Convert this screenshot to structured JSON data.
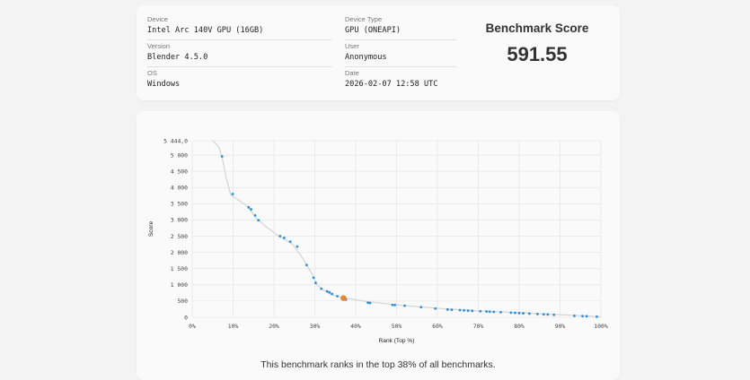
{
  "info": {
    "device_label": "Device",
    "device_value": "Intel Arc 140V GPU (16GB)",
    "version_label": "Version",
    "version_value": "Blender 4.5.0",
    "os_label": "OS",
    "os_value": "Windows",
    "device_type_label": "Device Type",
    "device_type_value": "GPU (ONEAPI)",
    "user_label": "User",
    "user_value": "Anonymous",
    "date_label": "Date",
    "date_value": "2026-02-07 12:58 UTC"
  },
  "score": {
    "title": "Benchmark Score",
    "value": "591.55"
  },
  "rank_text": "This benchmark ranks in the top 38% of all benchmarks.",
  "colors": {
    "points": "#2f8fd6",
    "highlight": "#e8852c",
    "curve": "#d4d4d4",
    "grid": "#e7e7e7"
  },
  "chart_data": {
    "type": "scatter",
    "xlabel": "Rank (Top %)",
    "ylabel": "Score",
    "xlim": [
      0,
      100
    ],
    "ylim": [
      0,
      5444
    ],
    "x_ticks": [
      "0%",
      "10%",
      "20%",
      "30%",
      "40%",
      "50%",
      "60%",
      "70%",
      "80%",
      "90%",
      "100%"
    ],
    "x_tick_values": [
      0,
      10,
      20,
      30,
      40,
      50,
      60,
      70,
      80,
      90,
      100
    ],
    "y_ticks": [
      "0",
      "500",
      "1 000",
      "1 500",
      "2 000",
      "2 500",
      "3 000",
      "3 500",
      "4 000",
      "4 500",
      "5 000",
      "5 444,0"
    ],
    "y_tick_values": [
      0,
      500,
      1000,
      1500,
      2000,
      2500,
      3000,
      3500,
      4000,
      4500,
      5000,
      5444
    ],
    "grid": true,
    "curve": [
      [
        5,
        5450
      ],
      [
        6.5,
        5250
      ],
      [
        7.3,
        4950
      ],
      [
        8.3,
        4300
      ],
      [
        9.4,
        3780
      ],
      [
        11.5,
        3600
      ],
      [
        13.5,
        3420
      ],
      [
        15.5,
        3080
      ],
      [
        18,
        2800
      ],
      [
        21,
        2520
      ],
      [
        24.5,
        2260
      ],
      [
        26.5,
        1920
      ],
      [
        28,
        1620
      ],
      [
        29.5,
        1300
      ],
      [
        30.5,
        1000
      ],
      [
        32,
        850
      ],
      [
        34,
        700
      ],
      [
        36,
        620
      ],
      [
        39,
        560
      ],
      [
        43,
        480
      ],
      [
        48,
        410
      ],
      [
        55,
        330
      ],
      [
        62,
        260
      ],
      [
        70,
        200
      ],
      [
        80,
        140
      ],
      [
        90,
        80
      ],
      [
        98,
        30
      ],
      [
        100,
        20
      ]
    ],
    "points": [
      {
        "x": 7.3,
        "y": 4960
      },
      {
        "x": 9.9,
        "y": 3800
      },
      {
        "x": 13.8,
        "y": 3390
      },
      {
        "x": 14.4,
        "y": 3330
      },
      {
        "x": 15.4,
        "y": 3140
      },
      {
        "x": 16.2,
        "y": 2990
      },
      {
        "x": 21.5,
        "y": 2500
      },
      {
        "x": 22.5,
        "y": 2450
      },
      {
        "x": 24.0,
        "y": 2330
      },
      {
        "x": 25.7,
        "y": 2180
      },
      {
        "x": 28.0,
        "y": 1610
      },
      {
        "x": 29.7,
        "y": 1220
      },
      {
        "x": 30.2,
        "y": 1060
      },
      {
        "x": 31.6,
        "y": 880
      },
      {
        "x": 33.0,
        "y": 800
      },
      {
        "x": 33.6,
        "y": 770
      },
      {
        "x": 34.2,
        "y": 720
      },
      {
        "x": 35.5,
        "y": 650
      },
      {
        "x": 37.6,
        "y": 545
      },
      {
        "x": 43.0,
        "y": 450
      },
      {
        "x": 43.5,
        "y": 440
      },
      {
        "x": 49.0,
        "y": 380
      },
      {
        "x": 49.6,
        "y": 375
      },
      {
        "x": 52.0,
        "y": 355
      },
      {
        "x": 56.0,
        "y": 310
      },
      {
        "x": 59.5,
        "y": 270
      },
      {
        "x": 62.5,
        "y": 240
      },
      {
        "x": 63.5,
        "y": 232
      },
      {
        "x": 65.5,
        "y": 220
      },
      {
        "x": 66.5,
        "y": 212
      },
      {
        "x": 67.5,
        "y": 205
      },
      {
        "x": 68.5,
        "y": 198
      },
      {
        "x": 70.5,
        "y": 185
      },
      {
        "x": 72.0,
        "y": 178
      },
      {
        "x": 72.8,
        "y": 172
      },
      {
        "x": 73.8,
        "y": 165
      },
      {
        "x": 75.5,
        "y": 155
      },
      {
        "x": 78.0,
        "y": 140
      },
      {
        "x": 79.0,
        "y": 134
      },
      {
        "x": 80.0,
        "y": 128
      },
      {
        "x": 81.0,
        "y": 122
      },
      {
        "x": 82.5,
        "y": 112
      },
      {
        "x": 84.5,
        "y": 100
      },
      {
        "x": 86.0,
        "y": 90
      },
      {
        "x": 87.0,
        "y": 85
      },
      {
        "x": 88.5,
        "y": 75
      },
      {
        "x": 93.5,
        "y": 45
      },
      {
        "x": 95.5,
        "y": 35
      },
      {
        "x": 96.5,
        "y": 30
      },
      {
        "x": 99.0,
        "y": 18
      }
    ],
    "highlight": {
      "x": 37.0,
      "y": 591.55
    }
  }
}
